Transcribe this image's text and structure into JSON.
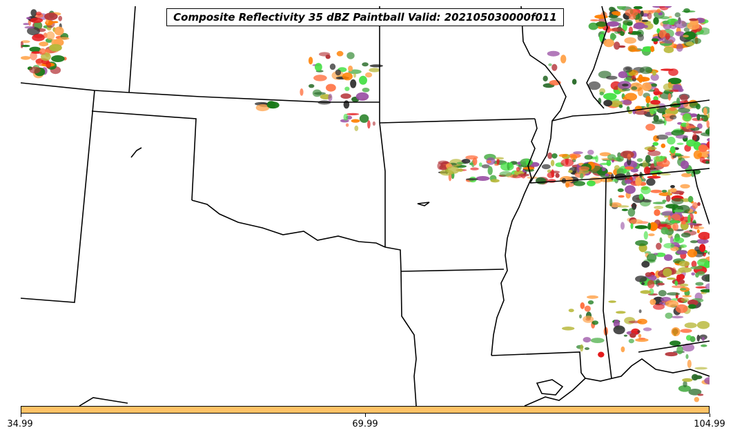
{
  "title": "Composite Reflectivity 35 dBZ Paintball Valid: 202105030000f011",
  "colorbar": {
    "color": "#ffc266",
    "ticks": [
      "34.99",
      "69.99",
      "104.99"
    ]
  },
  "paintball_palette": [
    "#e41a1c",
    "#ff7f00",
    "#4daf4a",
    "#984ea3",
    "#b8b83a",
    "#ff6f3f",
    "#1a7a1a",
    "#333333",
    "#b5363a",
    "#ffa54f",
    "#43e043",
    "#2e6e2e"
  ]
}
